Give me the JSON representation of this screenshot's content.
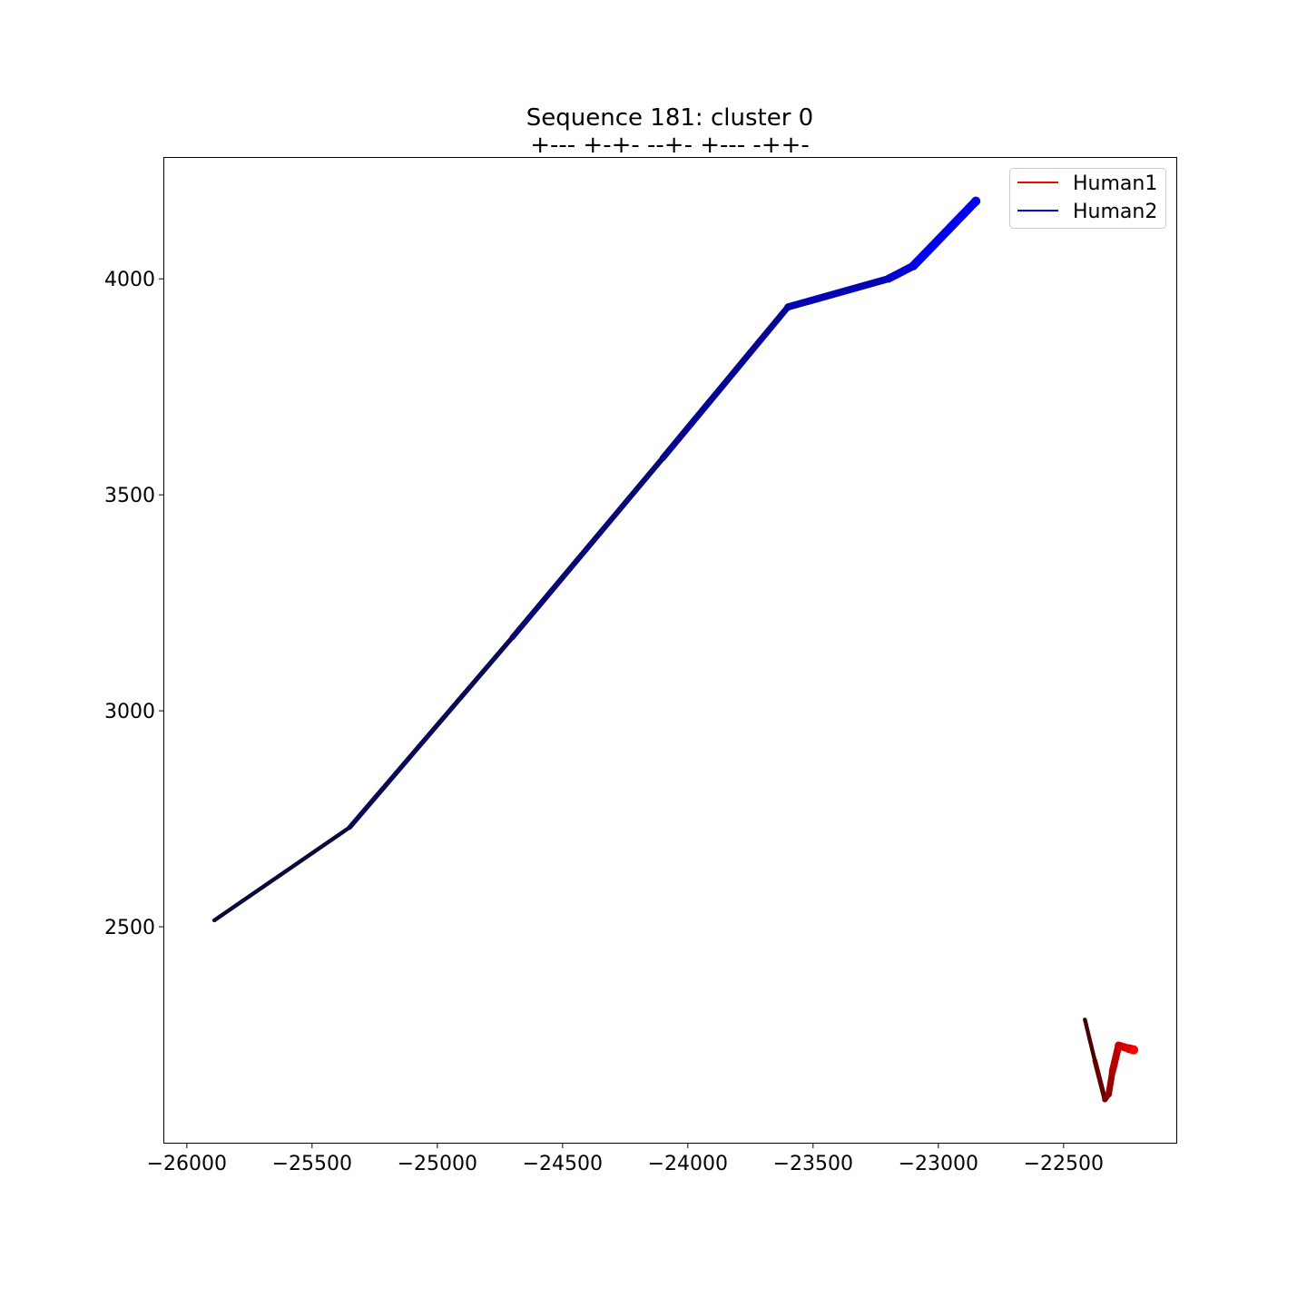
{
  "chart_data": {
    "type": "line",
    "title": "Sequence 181: cluster 0",
    "subtitle": "+--- +-+- --+- +--- -++-",
    "xlabel": "",
    "ylabel": "",
    "xlim": [
      -26090,
      -22050
    ],
    "ylim": [
      2000,
      4280
    ],
    "xticks": [
      -26000,
      -25500,
      -25000,
      -24500,
      -24000,
      -23500,
      -23000,
      -22500
    ],
    "xtick_labels": [
      "−26000",
      "−25500",
      "−25000",
      "−24500",
      "−24000",
      "−23500",
      "−23000",
      "−22500"
    ],
    "yticks": [
      2500,
      3000,
      3500,
      4000
    ],
    "ytick_labels": [
      "2500",
      "3000",
      "3500",
      "4000"
    ],
    "grid": false,
    "legend_position": "top-right",
    "series": [
      {
        "name": "Human1",
        "color": "#ff0000",
        "start_color": "#3a0000",
        "end_color": "#ff0000",
        "x": [
          -22415,
          -22375,
          -22335,
          -22320,
          -22305,
          -22280,
          -22240,
          -22220
        ],
        "y": [
          2285,
          2190,
          2100,
          2112,
          2165,
          2225,
          2218,
          2215
        ]
      },
      {
        "name": "Human2",
        "color": "#0000ff",
        "start_color": "#0a0a28",
        "end_color": "#0000ff",
        "x": [
          -25890,
          -25350,
          -24700,
          -24100,
          -23600,
          -23200,
          -23100,
          -22850
        ],
        "y": [
          2515,
          2730,
          3170,
          3585,
          3935,
          4000,
          4030,
          4180
        ]
      }
    ]
  }
}
